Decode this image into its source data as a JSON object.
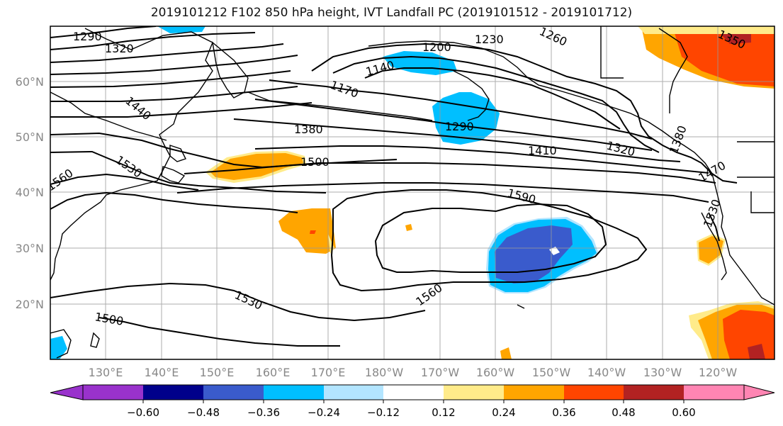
{
  "title": "2019101212 F102 850 hPa height, IVT Landfall PC (2019101512 - 2019101712)",
  "map": {
    "region": "North Pacific",
    "lat_labels": [
      "60°N",
      "50°N",
      "40°N",
      "30°N",
      "20°N"
    ],
    "lon_labels": [
      "130°E",
      "140°E",
      "150°E",
      "160°E",
      "170°E",
      "180°W",
      "170°W",
      "160°W",
      "150°W",
      "140°W",
      "130°W",
      "120°W"
    ],
    "height_contours_label_values": [
      "1290",
      "1320",
      "1440",
      "1530",
      "1560",
      "1500",
      "1380",
      "1140",
      "1170",
      "1200",
      "1230",
      "1260",
      "1290",
      "1410",
      "1320",
      "1350",
      "1500",
      "1590",
      "1560",
      "1530",
      "1500",
      "1470",
      "1530",
      "1380"
    ],
    "contour_labels": [
      {
        "text": "1290"
      },
      {
        "text": "1320"
      },
      {
        "text": "1440"
      },
      {
        "text": "1530"
      },
      {
        "text": "1560"
      },
      {
        "text": "1380"
      },
      {
        "text": "1140"
      },
      {
        "text": "1170"
      },
      {
        "text": "1200"
      },
      {
        "text": "1230"
      },
      {
        "text": "1260"
      },
      {
        "text": "1290"
      },
      {
        "text": "1410"
      },
      {
        "text": "1320"
      },
      {
        "text": "1350"
      },
      {
        "text": "1500"
      },
      {
        "text": "1590"
      },
      {
        "text": "1560"
      },
      {
        "text": "1530"
      },
      {
        "text": "1500"
      },
      {
        "text": "1470"
      },
      {
        "text": "1530"
      },
      {
        "text": "1380"
      }
    ]
  },
  "colorbar": {
    "tick_labels": [
      "−0.60",
      "−0.48",
      "−0.36",
      "−0.24",
      "−0.12",
      "0.12",
      "0.24",
      "0.36",
      "0.48",
      "0.60"
    ],
    "colors": [
      "#9932cc",
      "#00008b",
      "#3a5bcc",
      "#00bfff",
      "#b3e5ff",
      "#ffffff",
      "#ffeb8a",
      "#ffa500",
      "#ff4500",
      "#b22222",
      "#ff85b3"
    ]
  }
}
